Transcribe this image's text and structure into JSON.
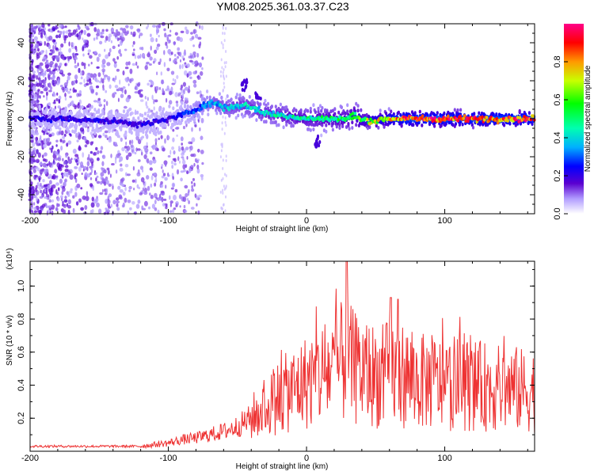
{
  "title": "YM08.2025.361.03.37.C23",
  "chart_data": [
    {
      "type": "heatmap",
      "xlabel": "Height of straight line (km)",
      "ylabel": "Frequency (Hz)",
      "xlim": [
        -200,
        165
      ],
      "ylim": [
        -50,
        50
      ],
      "xticks": [
        "-200",
        "-100",
        "0",
        "100"
      ],
      "yticks": [
        "-40",
        "-20",
        "0",
        "20",
        "40"
      ],
      "colorbar": {
        "label": "Normalized spectral amplitude",
        "range": [
          0,
          1
        ],
        "ticks": [
          "0.0",
          "0.2",
          "0.4",
          "0.6",
          "0.8"
        ]
      },
      "ridge": {
        "x": [
          -200,
          -170,
          -150,
          -130,
          -120,
          -110,
          -100,
          -90,
          -80,
          -75,
          -70,
          -65,
          -60,
          -55,
          -50,
          -45,
          -40,
          -30,
          -20,
          -10,
          0,
          10,
          20,
          30,
          35,
          40,
          50,
          60,
          80,
          100,
          120,
          140,
          165
        ],
        "y": [
          0,
          0,
          -1,
          -2,
          -3,
          -2,
          0,
          2,
          5,
          7,
          8,
          8,
          6,
          6,
          7,
          7,
          6,
          3,
          2,
          1,
          0,
          0,
          0,
          0,
          2,
          -1,
          -1,
          0,
          0,
          0,
          0,
          0,
          0
        ]
      }
    },
    {
      "type": "line",
      "xlabel": "Height of straight line (km)",
      "ylabel": "SNR (10 * v/v)",
      "y_multiplier": "(x10⁴)",
      "xlim": [
        -200,
        165
      ],
      "ylim": [
        0,
        1.15
      ],
      "xticks": [
        "-200",
        "-100",
        "0",
        "100"
      ],
      "yticks": [
        "0.2",
        "0.4",
        "0.6",
        "0.8",
        "1.0"
      ],
      "series": [
        {
          "color": "#ee3333",
          "x": [
            -200,
            -180,
            -160,
            -140,
            -120,
            -110,
            -100,
            -90,
            -80,
            -70,
            -60,
            -50,
            -40,
            -30,
            -20,
            -10,
            0,
            10,
            20,
            28,
            35,
            45,
            55,
            60,
            70,
            80,
            90,
            100,
            110,
            120,
            130,
            140,
            150,
            160,
            165
          ],
          "y": [
            0.03,
            0.03,
            0.03,
            0.03,
            0.03,
            0.04,
            0.05,
            0.07,
            0.08,
            0.1,
            0.12,
            0.15,
            0.2,
            0.27,
            0.33,
            0.37,
            0.42,
            0.46,
            0.5,
            0.55,
            0.5,
            0.47,
            0.44,
            0.48,
            0.46,
            0.42,
            0.42,
            0.4,
            0.41,
            0.4,
            0.39,
            0.38,
            0.38,
            0.36,
            0.37
          ]
        }
      ]
    }
  ]
}
